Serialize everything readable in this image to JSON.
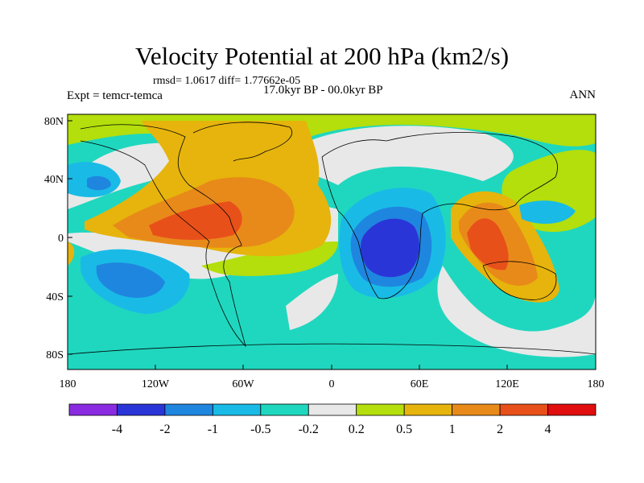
{
  "header": {
    "title": "Velocity Potential at 200 hPa (km2/s)",
    "stats": "rmsd= 1.0617 diff= 1.77662e-05",
    "period": "17.0kyr BP - 00.0kyr BP",
    "experiment": "Expt = temcr-temca",
    "season": "ANN"
  },
  "axes": {
    "lat_ticks": [
      "80N",
      "40N",
      "0",
      "40S",
      "80S"
    ],
    "lon_ticks": [
      "180",
      "120W",
      "60W",
      "0",
      "60E",
      "120E",
      "180"
    ]
  },
  "colorbar": {
    "colors": [
      "#8a2be2",
      "#2a35d8",
      "#1f86e0",
      "#19bbe6",
      "#1fd7bf",
      "#e8e8e8",
      "#b4de0c",
      "#e6b40c",
      "#e88a1a",
      "#e8501a",
      "#e00e0e"
    ],
    "labels": [
      "-4",
      "-2",
      "-1",
      "-0.5",
      "-0.2",
      "0.2",
      "0.5",
      "1",
      "2",
      "4"
    ]
  }
}
